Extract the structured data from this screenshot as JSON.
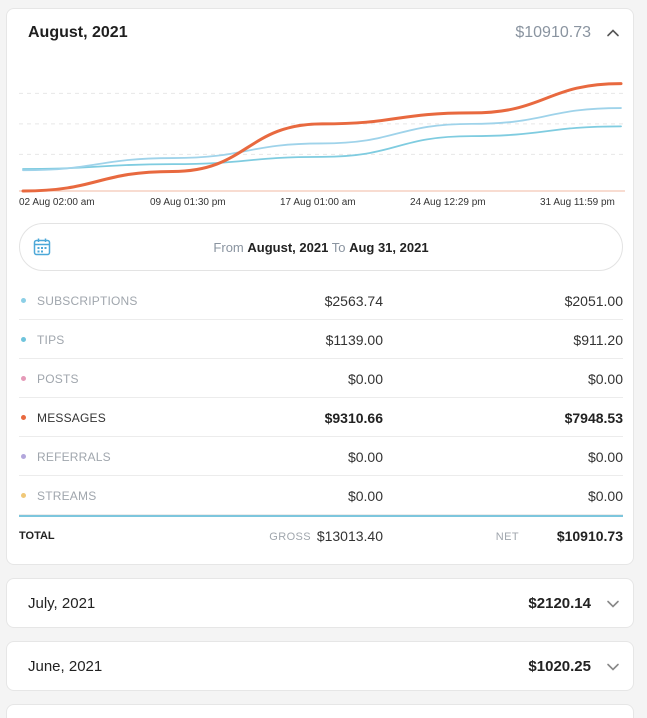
{
  "august": {
    "title": "August, 2021",
    "amount": "$10910.73",
    "x_ticks": [
      "02 Aug 02:00 am",
      "09 Aug 01:30 pm",
      "17 Aug 01:00 am",
      "24 Aug 12:29 pm",
      "31 Aug 11:59 pm"
    ],
    "range": {
      "from_label": "From",
      "from_value": "August, 2021",
      "to_label": "To",
      "to_value": "Aug 31, 2021"
    },
    "rows": [
      {
        "label": "SUBSCRIPTIONS",
        "gross": "$2563.74",
        "net": "$2051.00",
        "color": "#8ccfe6",
        "highlight": false
      },
      {
        "label": "TIPS",
        "gross": "$1139.00",
        "net": "$911.20",
        "color": "#6fc4dc",
        "highlight": false
      },
      {
        "label": "POSTS",
        "gross": "$0.00",
        "net": "$0.00",
        "color": "#e59ab8",
        "highlight": false
      },
      {
        "label": "MESSAGES",
        "gross": "$9310.66",
        "net": "$7948.53",
        "color": "#e8693f",
        "highlight": true
      },
      {
        "label": "REFERRALS",
        "gross": "$0.00",
        "net": "$0.00",
        "color": "#b3a7dc",
        "highlight": false
      },
      {
        "label": "STREAMS",
        "gross": "$0.00",
        "net": "$0.00",
        "color": "#f0c878",
        "highlight": false
      }
    ],
    "total": {
      "label": "TOTAL",
      "gross_label": "GROSS",
      "gross_value": "$13013.40",
      "net_label": "NET",
      "net_value": "$10910.73"
    },
    "chart_data": {
      "type": "line",
      "x": [
        "02 Aug 02:00 am",
        "09 Aug 01:30 pm",
        "17 Aug 01:00 am",
        "24 Aug 12:29 pm",
        "31 Aug 11:59 pm"
      ],
      "series": [
        {
          "color": "#e8693f",
          "values": [
            0,
            16,
            55,
            64,
            88
          ]
        },
        {
          "color": "#9fd3ea",
          "values": [
            17,
            27,
            39,
            55,
            68
          ]
        },
        {
          "color": "#7fcce0",
          "values": [
            18,
            22,
            28,
            45,
            53
          ]
        }
      ],
      "ylim": [
        0,
        100
      ],
      "grid": true
    }
  },
  "months": [
    {
      "title": "July, 2021",
      "amount": "$2120.14"
    },
    {
      "title": "June, 2021",
      "amount": "$1020.25"
    }
  ]
}
